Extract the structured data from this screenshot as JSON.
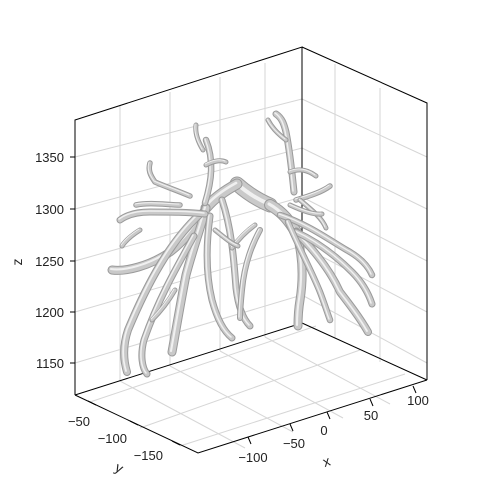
{
  "chart_data": {
    "type": "3d-surface",
    "title": "",
    "xlabel": "x",
    "ylabel": "y",
    "zlabel": "z",
    "xlim": [
      -130,
      115
    ],
    "ylim": [
      -185,
      -35
    ],
    "zlim": [
      1115,
      1385
    ],
    "x_ticks": [
      "−100",
      "−50",
      "0",
      "50",
      "100"
    ],
    "y_ticks": [
      "−50",
      "−100",
      "−150"
    ],
    "z_ticks": [
      "1150",
      "1200",
      "1250",
      "1300",
      "1350"
    ],
    "grid": true,
    "legend": "none",
    "surface_color": "#c9c9c9",
    "surface_shade": "#9a9a9a",
    "surface_highlight": "#f0f0f0"
  }
}
